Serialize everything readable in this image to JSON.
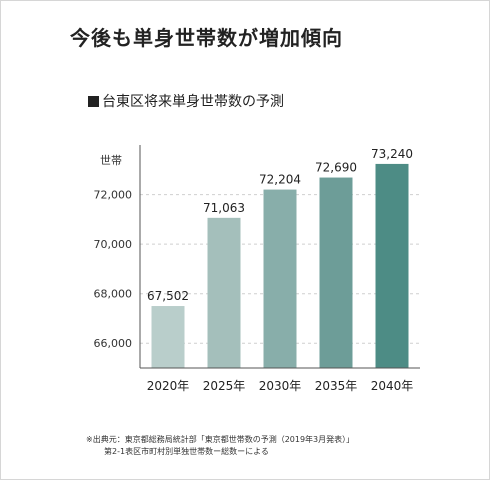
{
  "headline": "今後も単身世帯数が増加傾向",
  "chart_data": {
    "type": "bar",
    "title": "台東区将来単身世帯数の予測",
    "ylabel": "世帯",
    "categories": [
      "2020年",
      "2025年",
      "2030年",
      "2035年",
      "2040年"
    ],
    "values": [
      67502,
      71063,
      72204,
      72690,
      73240
    ],
    "value_labels": [
      "67,502",
      "71,063",
      "72,204",
      "72,690",
      "73,240"
    ],
    "ylim": [
      65000,
      73600
    ],
    "yticks": [
      66000,
      68000,
      70000,
      72000
    ],
    "ytick_labels": [
      "66,000",
      "68,000",
      "70,000",
      "72,000"
    ],
    "grid": true,
    "bar_colors": [
      "#b9cecb",
      "#a4bfbb",
      "#88aeaa",
      "#6d9d98",
      "#4d8c85"
    ]
  },
  "source": {
    "line1": "※出典元：東京都総務局統計部「東京都世帯数の予測（2019年3月発表）」",
    "line2": "第2-1表区市町村別単独世帯数ー総数ーによる"
  }
}
